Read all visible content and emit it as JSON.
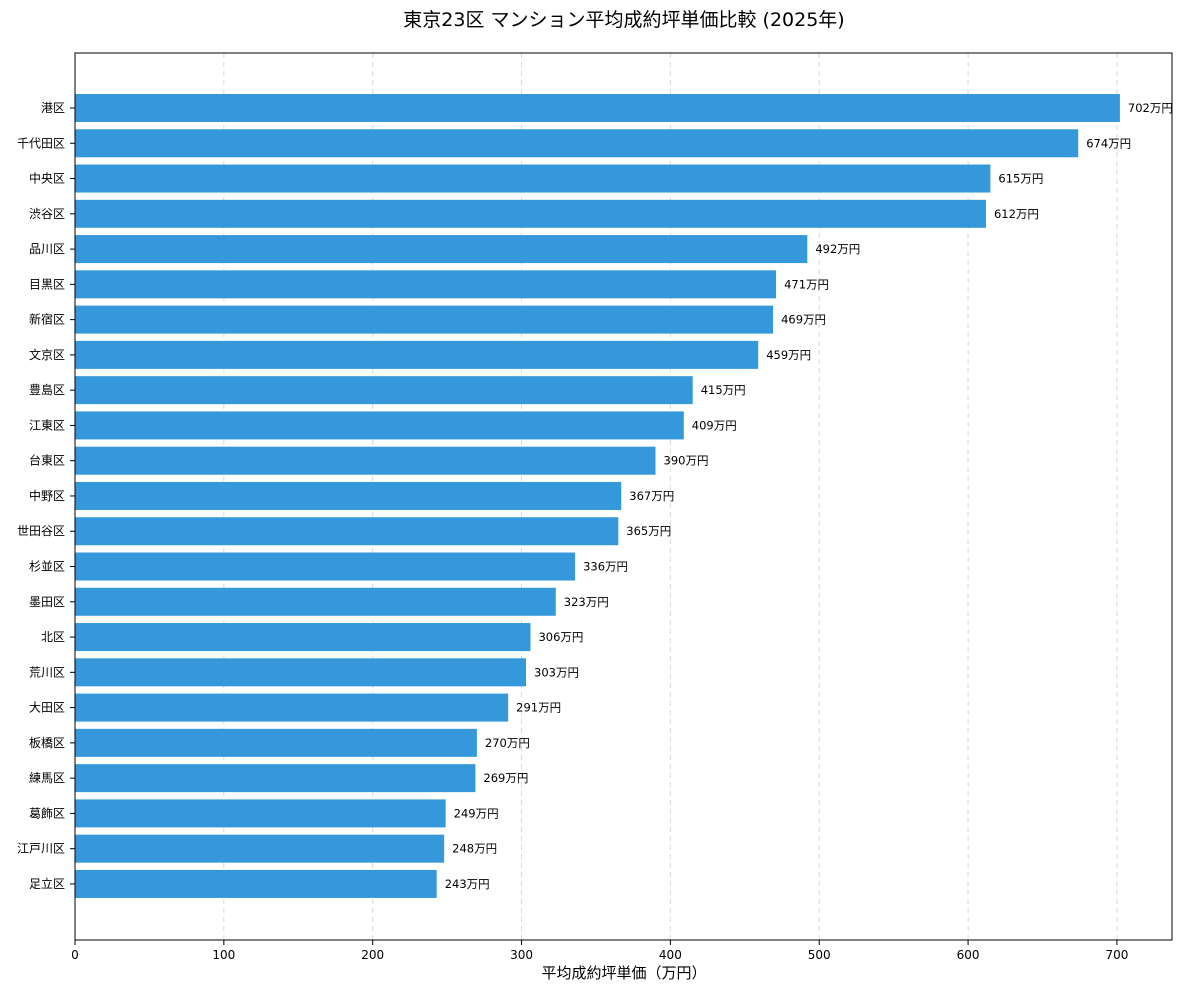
{
  "chart_data": {
    "type": "bar",
    "orientation": "horizontal",
    "title": "東京23区 マンション平均成約坪単価比較 (2025年)",
    "xlabel": "平均成約坪単価（万円）",
    "ylabel": "",
    "xlim": [
      0,
      737
    ],
    "x_ticks": [
      "0",
      "100",
      "200",
      "300",
      "400",
      "500",
      "600",
      "700"
    ],
    "grid": "vertical dashed",
    "bar_color": "#3498db",
    "value_suffix": "万円",
    "categories": [
      "港区",
      "千代田区",
      "中央区",
      "渋谷区",
      "品川区",
      "目黒区",
      "新宿区",
      "文京区",
      "豊島区",
      "江東区",
      "台東区",
      "中野区",
      "世田谷区",
      "杉並区",
      "墨田区",
      "北区",
      "荒川区",
      "大田区",
      "板橋区",
      "練馬区",
      "葛飾区",
      "江戸川区",
      "足立区"
    ],
    "values": [
      702,
      674,
      615,
      612,
      492,
      471,
      469,
      459,
      415,
      409,
      390,
      367,
      365,
      336,
      323,
      306,
      303,
      291,
      270,
      269,
      249,
      248,
      243
    ],
    "labels": [
      "702万円",
      "674万円",
      "615万円",
      "612万円",
      "492万円",
      "471万円",
      "469万円",
      "459万円",
      "415万円",
      "409万円",
      "390万円",
      "367万円",
      "365万円",
      "336万円",
      "323万円",
      "306万円",
      "303万円",
      "291万円",
      "270万円",
      "269万円",
      "249万円",
      "248万円",
      "243万円"
    ]
  }
}
